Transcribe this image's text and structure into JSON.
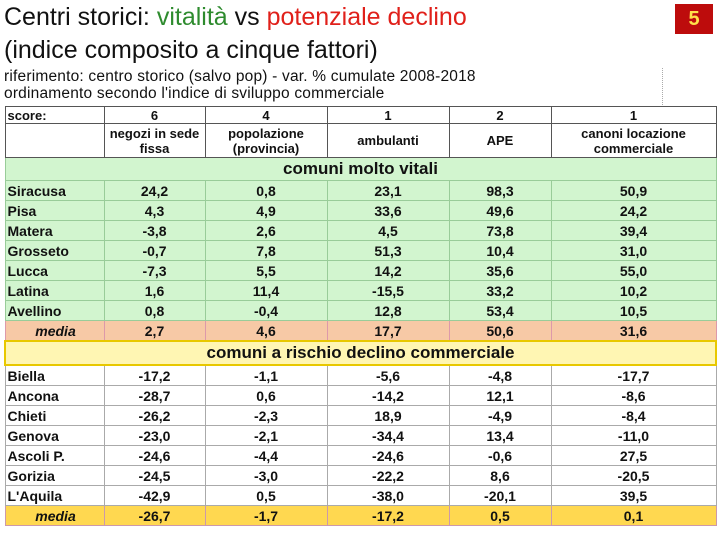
{
  "title": {
    "part1": "Centri storici: ",
    "part2": "vitalità",
    "part3": " vs ",
    "part4": "potenziale declino"
  },
  "subtitle": "(indice composito a cinque fattori)",
  "slide_number": "5",
  "note": {
    "line1": "riferimento: centro storico (salvo pop) - var. % cumulate 2008-2018",
    "line2": "ordinamento secondo l'indice di sviluppo commerciale"
  },
  "colors": {
    "green_title": "#2e8b2e",
    "red_title": "#e0201a",
    "badge": "#bd0c0c",
    "vital_bg": "#d2f5cf",
    "vital_media_bg": "#f7c9a6",
    "risk_media_bg": "#ffd850",
    "risk_border": "#f0c800"
  },
  "score_label": "score:",
  "scores": [
    "6",
    "4",
    "1",
    "2",
    "1"
  ],
  "columns": [
    "negozi in sede fissa",
    "popolazione (provincia)",
    "ambulanti",
    "APE",
    "canoni locazione commerciale"
  ],
  "section_vital": "comuni molto vitali",
  "vital_rows": [
    {
      "name": "Siracusa",
      "values": [
        "24,2",
        "0,8",
        "23,1",
        "98,3",
        "50,9"
      ]
    },
    {
      "name": "Pisa",
      "values": [
        "4,3",
        "4,9",
        "33,6",
        "49,6",
        "24,2"
      ]
    },
    {
      "name": "Matera",
      "values": [
        "-3,8",
        "2,6",
        "4,5",
        "73,8",
        "39,4"
      ]
    },
    {
      "name": "Grosseto",
      "values": [
        "-0,7",
        "7,8",
        "51,3",
        "10,4",
        "31,0"
      ]
    },
    {
      "name": "Lucca",
      "values": [
        "-7,3",
        "5,5",
        "14,2",
        "35,6",
        "55,0"
      ]
    },
    {
      "name": "Latina",
      "values": [
        "1,6",
        "11,4",
        "-15,5",
        "33,2",
        "10,2"
      ]
    },
    {
      "name": "Avellino",
      "values": [
        "0,8",
        "-0,4",
        "12,8",
        "53,4",
        "10,5"
      ]
    }
  ],
  "vital_media": {
    "name": "media",
    "values": [
      "2,7",
      "4,6",
      "17,7",
      "50,6",
      "31,6"
    ]
  },
  "section_risk": "comuni a rischio declino commerciale",
  "risk_rows": [
    {
      "name": "Biella",
      "values": [
        "-17,2",
        "-1,1",
        "-5,6",
        "-4,8",
        "-17,7"
      ]
    },
    {
      "name": "Ancona",
      "values": [
        "-28,7",
        "0,6",
        "-14,2",
        "12,1",
        "-8,6"
      ]
    },
    {
      "name": "Chieti",
      "values": [
        "-26,2",
        "-2,3",
        "18,9",
        "-4,9",
        "-8,4"
      ]
    },
    {
      "name": "Genova",
      "values": [
        "-23,0",
        "-2,1",
        "-34,4",
        "13,4",
        "-11,0"
      ]
    },
    {
      "name": "Ascoli P.",
      "values": [
        "-24,6",
        "-4,4",
        "-24,6",
        "-0,6",
        "27,5"
      ]
    },
    {
      "name": "Gorizia",
      "values": [
        "-24,5",
        "-3,0",
        "-22,2",
        "8,6",
        "-20,5"
      ]
    },
    {
      "name": "L'Aquila",
      "values": [
        "-42,9",
        "0,5",
        "-38,0",
        "-20,1",
        "39,5"
      ]
    }
  ],
  "risk_media": {
    "name": "media",
    "values": [
      "-26,7",
      "-1,7",
      "-17,2",
      "0,5",
      "0,1"
    ]
  }
}
